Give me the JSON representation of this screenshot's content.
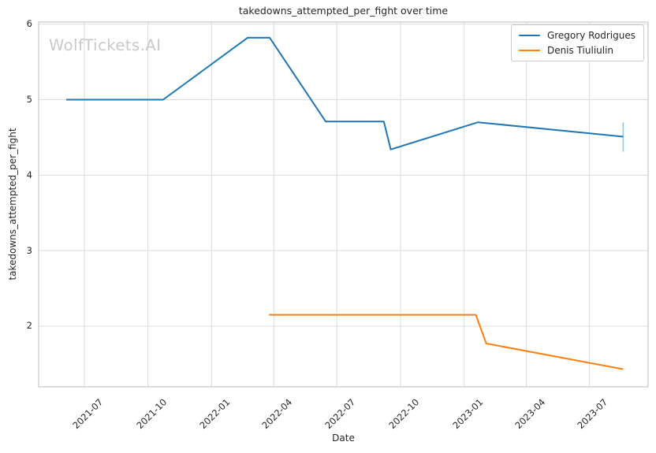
{
  "watermark": "WolfTickets.AI",
  "chart_data": {
    "type": "line",
    "title": "takedowns_attempted_per_fight over time",
    "xlabel": "Date",
    "ylabel": "takedowns_attempted_per_fight",
    "grid": true,
    "legend_position": "upper right",
    "background_color": "#ffffff",
    "grid_color": "#dcdcdc",
    "spine_color": "#c8c8c8",
    "xlim": [
      "2021-04-26",
      "2023-09-24"
    ],
    "ylim": [
      1.196,
      6.028
    ],
    "y_ticks": [
      {
        "label": "2",
        "value": 2
      },
      {
        "label": "3",
        "value": 3
      },
      {
        "label": "4",
        "value": 4
      },
      {
        "label": "5",
        "value": 5
      },
      {
        "label": "6",
        "value": 6
      }
    ],
    "x_ticks": [
      {
        "label": "2021-07",
        "date": "2021-07-01"
      },
      {
        "label": "2021-10",
        "date": "2021-10-01"
      },
      {
        "label": "2022-01",
        "date": "2022-01-01"
      },
      {
        "label": "2022-04",
        "date": "2022-04-01"
      },
      {
        "label": "2022-07",
        "date": "2022-07-01"
      },
      {
        "label": "2022-10",
        "date": "2022-10-01"
      },
      {
        "label": "2023-01",
        "date": "2023-01-01"
      },
      {
        "label": "2023-04",
        "date": "2023-04-01"
      },
      {
        "label": "2023-07",
        "date": "2023-07-01"
      }
    ],
    "series": [
      {
        "name": "Gregory Rodrigues",
        "color": "#1f77b4",
        "points": [
          {
            "date": "2021-06-05",
            "value": 5.0
          },
          {
            "date": "2021-10-23",
            "value": 5.0
          },
          {
            "date": "2022-02-22",
            "value": 5.82
          },
          {
            "date": "2022-03-26",
            "value": 5.82
          },
          {
            "date": "2022-06-15",
            "value": 4.71
          },
          {
            "date": "2022-09-07",
            "value": 4.71
          },
          {
            "date": "2022-09-17",
            "value": 4.34
          },
          {
            "date": "2023-01-21",
            "value": 4.7
          },
          {
            "date": "2023-08-19",
            "value": 4.51
          }
        ],
        "end_cap": {
          "date": "2023-08-19",
          "from": 4.31,
          "to": 4.7
        }
      },
      {
        "name": "Denis Tiuliulin",
        "color": "#ff7f0e",
        "points": [
          {
            "date": "2022-03-25",
            "value": 2.15
          },
          {
            "date": "2023-01-18",
            "value": 2.15
          },
          {
            "date": "2023-02-02",
            "value": 1.77
          },
          {
            "date": "2023-08-19",
            "value": 1.43
          }
        ]
      }
    ]
  }
}
